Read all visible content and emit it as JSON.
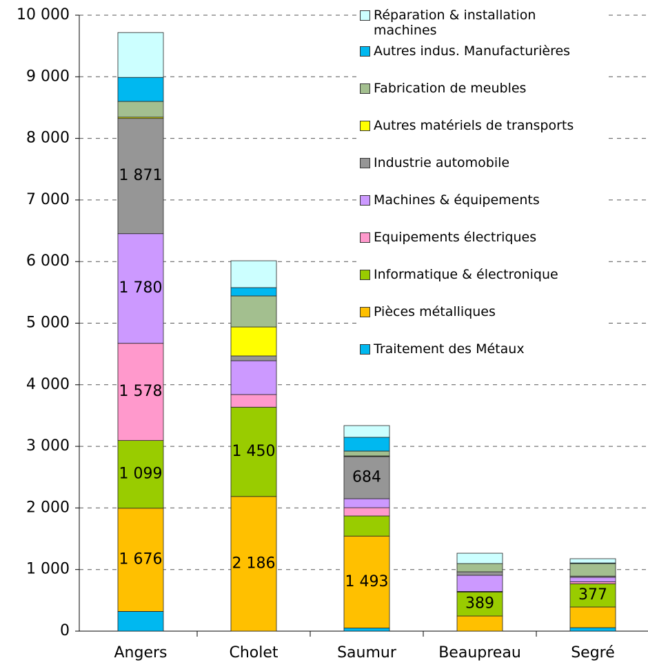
{
  "chart_data": {
    "type": "stacked_bar",
    "categories": [
      "Angers",
      "Cholet",
      "Saumur",
      "Beaupreau",
      "Segré"
    ],
    "ylim": [
      0,
      10000
    ],
    "yticks": [
      0,
      {
        "value": 1000,
        "label": "1 000"
      },
      {
        "value": 2000,
        "label": "2 000"
      },
      {
        "value": 3000,
        "label": "3 000"
      },
      {
        "value": 4000,
        "label": "4 000"
      },
      {
        "value": 5000,
        "label": "5 000"
      },
      {
        "value": 6000,
        "label": "6 000"
      },
      {
        "value": 7000,
        "label": "7 000"
      },
      {
        "value": 8000,
        "label": "8 000"
      },
      {
        "value": 9000,
        "label": "9 000"
      },
      {
        "value": 10000,
        "label": "10 000"
      }
    ],
    "grid": true,
    "series": [
      {
        "name": "Traitement des Métaux",
        "color": "#00b8f0",
        "values": [
          320,
          0,
          50,
          0,
          56
        ],
        "value_labels": [
          null,
          null,
          null,
          null,
          null
        ]
      },
      {
        "name": "Pièces métalliques",
        "color": "#ffc000",
        "values": [
          1676,
          2186,
          1493,
          246,
          336
        ],
        "value_labels": [
          "1 676",
          "2 186",
          "1 493",
          null,
          null
        ]
      },
      {
        "name": "Informatique & électronique",
        "color": "#99cc00",
        "values": [
          1099,
          1450,
          327,
          389,
          377
        ],
        "value_labels": [
          "1 099",
          "1 450",
          null,
          "389",
          "377"
        ]
      },
      {
        "name": "Equipements électriques",
        "color": "#ff99cc",
        "values": [
          1578,
          205,
          134,
          10,
          31
        ],
        "value_labels": [
          "1 578",
          null,
          null,
          null,
          null
        ]
      },
      {
        "name": "Machines & équipements",
        "color": "#cc99ff",
        "values": [
          1780,
          549,
          146,
          262,
          73
        ],
        "value_labels": [
          "1 780",
          null,
          null,
          null,
          null
        ]
      },
      {
        "name": "Industrie automobile",
        "color": "#969696",
        "values": [
          1871,
          78,
          684,
          56,
          20
        ],
        "value_labels": [
          "1 871",
          null,
          "684",
          null,
          null
        ]
      },
      {
        "name": "Autres matériels de transports",
        "color": "#ffff00",
        "values": [
          20,
          470,
          10,
          0,
          0
        ],
        "value_labels": [
          null,
          null,
          null,
          null,
          null
        ]
      },
      {
        "name": "Fabrication de meubles",
        "color": "#a3bf8f",
        "values": [
          256,
          504,
          79,
          134,
          204
        ],
        "value_labels": [
          null,
          null,
          null,
          null,
          null
        ]
      },
      {
        "name": "Autres indus. Manufacturières",
        "color": "#00b8f0",
        "values": [
          390,
          135,
          224,
          0,
          10
        ],
        "value_labels": [
          null,
          null,
          null,
          null,
          null
        ]
      },
      {
        "name": "Réparation & installation machines",
        "color": "#ccffff",
        "values": [
          728,
          436,
          190,
          168,
          69
        ],
        "value_labels": [
          null,
          null,
          null,
          null,
          null
        ]
      }
    ]
  }
}
